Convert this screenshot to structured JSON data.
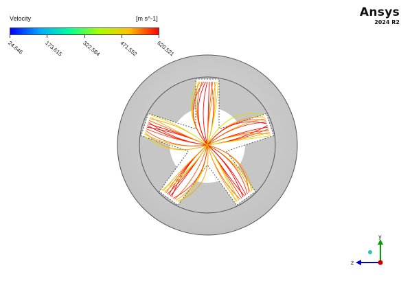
{
  "app": {
    "brand": "Ansys",
    "version": "2024 R2"
  },
  "legend": {
    "title": "Velocity",
    "unit": "[m s^-1]",
    "labels": [
      "24.646",
      "173.615",
      "322.584",
      "471.552",
      "620.521"
    ],
    "colors": [
      "#0000ff",
      "#00a8ff",
      "#00ff9a",
      "#a8ff00",
      "#ffc000",
      "#ff0000"
    ]
  },
  "triad": {
    "y_label": "y",
    "z_label": "z"
  },
  "colors": {
    "outer_ring": "#cfcfcf",
    "inner_ring": "#c4c4c4",
    "core": "#ffffff",
    "streamline": "#ff1a00",
    "y_axis": "#00a000",
    "z_axis": "#0000c8",
    "x_axis": "#d00000"
  }
}
